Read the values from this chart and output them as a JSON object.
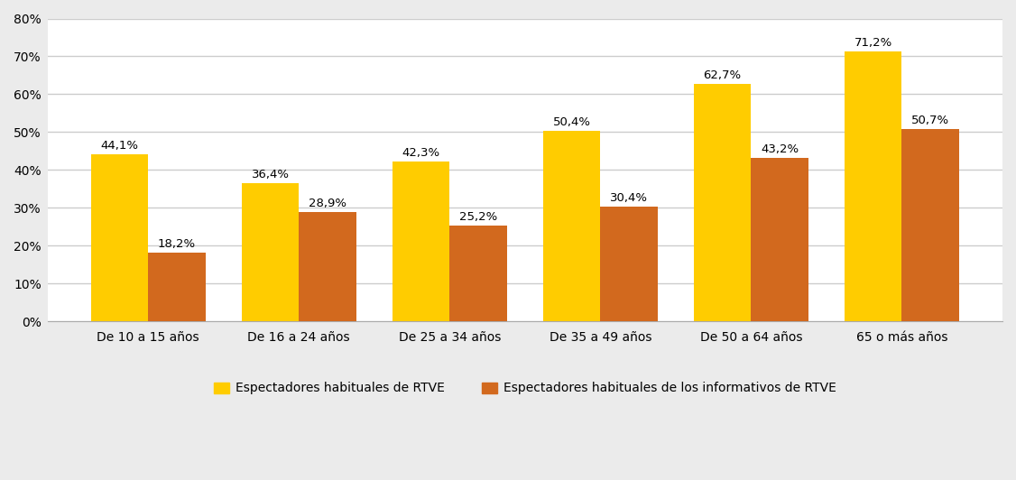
{
  "categories": [
    "De 10 a 15 años",
    "De 16 a 24 años",
    "De 25 a 34 años",
    "De 35 a 49 años",
    "De 50 a 64 años",
    "65 o más años"
  ],
  "series": [
    {
      "name": "Espectadores habituales de RTVE",
      "values": [
        44.1,
        36.4,
        42.3,
        50.4,
        62.7,
        71.2
      ],
      "color": "#FFCC00",
      "labels": [
        "44,1%",
        "36,4%",
        "42,3%",
        "50,4%",
        "62,7%",
        "71,2%"
      ]
    },
    {
      "name": "Espectadores habituales de los informativos de RTVE",
      "values": [
        18.2,
        28.9,
        25.2,
        30.4,
        43.2,
        50.7
      ],
      "color": "#D2691E",
      "labels": [
        "18,2%",
        "28,9%",
        "25,2%",
        "30,4%",
        "43,2%",
        "50,7%"
      ]
    }
  ],
  "ylim": [
    0,
    80
  ],
  "yticks": [
    0,
    10,
    20,
    30,
    40,
    50,
    60,
    70,
    80
  ],
  "ytick_labels": [
    "0%",
    "10%",
    "20%",
    "30%",
    "40%",
    "50%",
    "60%",
    "70%",
    "80%"
  ],
  "plot_bg_color": "#FFFFFF",
  "outer_bg_color": "#EBEBEB",
  "bar_width": 0.38,
  "label_fontsize": 9.5,
  "tick_fontsize": 10,
  "legend_fontsize": 10,
  "grid_color": "#CCCCCC",
  "grid_linewidth": 1.0
}
